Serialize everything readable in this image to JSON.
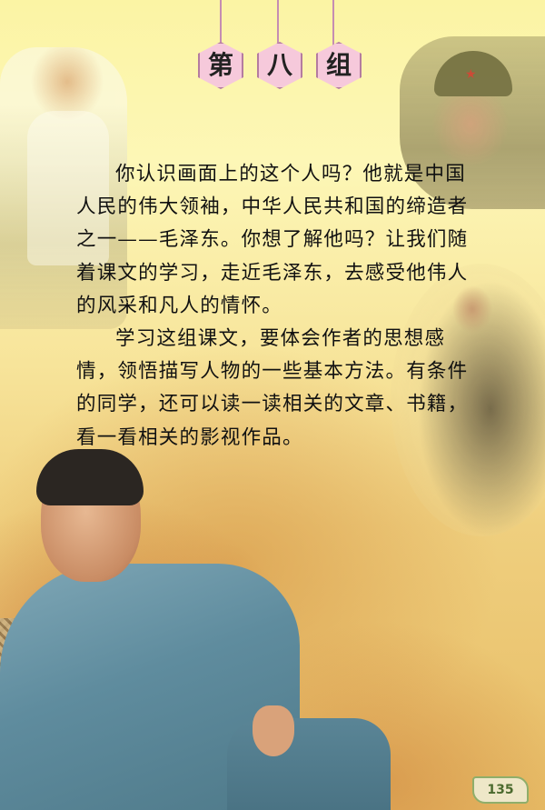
{
  "header": {
    "title_chars": [
      "第",
      "八",
      "组"
    ]
  },
  "intro": {
    "paragraph1": "你认识画面上的这个人吗？他就是中国人民的伟大领袖，中华人民共和国的缔造者之一——毛泽东。你想了解他吗？让我们随着课文的学习，走近毛泽东，去感受他伟人的风采和凡人的情怀。",
    "paragraph2": "学习这组课文，要体会作者的思想感情，领悟描写人物的一些基本方法。有条件的同学，还可以读一读相关的文章、书籍，看一看相关的影视作品。"
  },
  "footer": {
    "page_number": "135"
  },
  "colors": {
    "background_top": "#fbf4a4",
    "background_bottom": "#e7bc66",
    "title_hex": "#f6c9db",
    "string": "#c58db2",
    "page_badge_border": "#8fae6a"
  }
}
